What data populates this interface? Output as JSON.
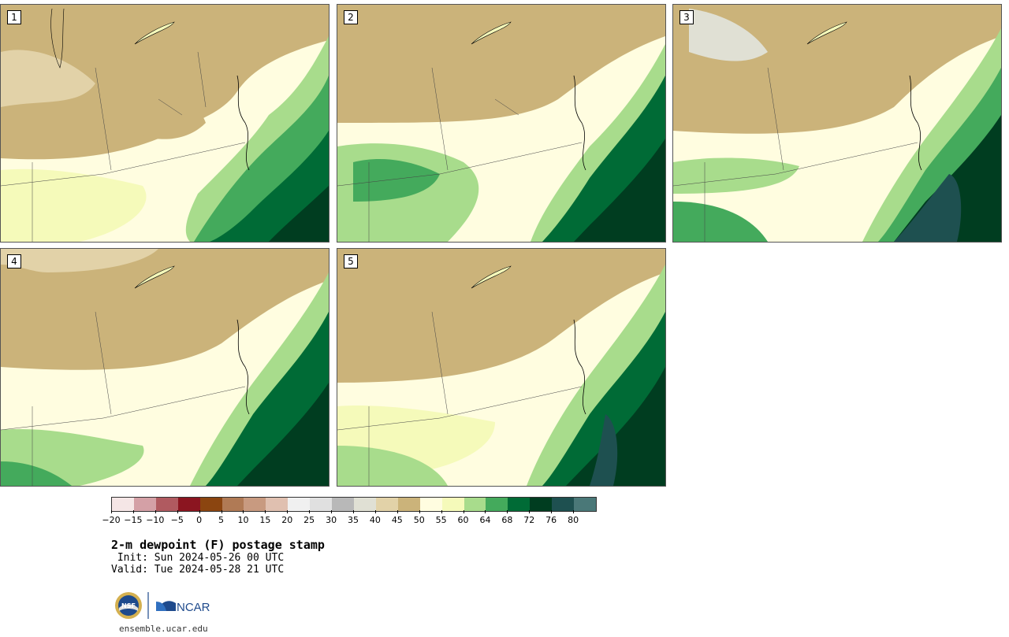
{
  "panels": [
    {
      "label": "1"
    },
    {
      "label": "2"
    },
    {
      "label": "3"
    },
    {
      "label": "4"
    },
    {
      "label": "5"
    }
  ],
  "colorbar": {
    "colors": [
      "#f5e6e6",
      "#d4a0a6",
      "#b05a60",
      "#8b1520",
      "#8b4510",
      "#b07a55",
      "#c89a80",
      "#e0c0b0",
      "#f0f0f0",
      "#e0e0e0",
      "#b8b8b8",
      "#e0e0d4",
      "#e2d2a8",
      "#cbb37a",
      "#fffde0",
      "#f5faba",
      "#a8dc8c",
      "#44aa5c",
      "#006b36",
      "#003d20",
      "#1e5050",
      "#4a7878"
    ],
    "ticks": [
      "−20",
      "−15",
      "−10",
      "−5",
      "0",
      "5",
      "10",
      "15",
      "20",
      "25",
      "30",
      "35",
      "40",
      "45",
      "50",
      "55",
      "60",
      "64",
      "68",
      "72",
      "76",
      "80"
    ]
  },
  "title": "2-m dewpoint (F) postage stamp",
  "init": " Init: Sun 2024-05-26 00 UTC",
  "valid": "Valid: Tue 2024-05-28 21 UTC",
  "logo": {
    "nsf_text": "NSF",
    "ncar_text": "NCAR"
  },
  "footer": {
    "url": "ensemble.ucar.edu"
  }
}
